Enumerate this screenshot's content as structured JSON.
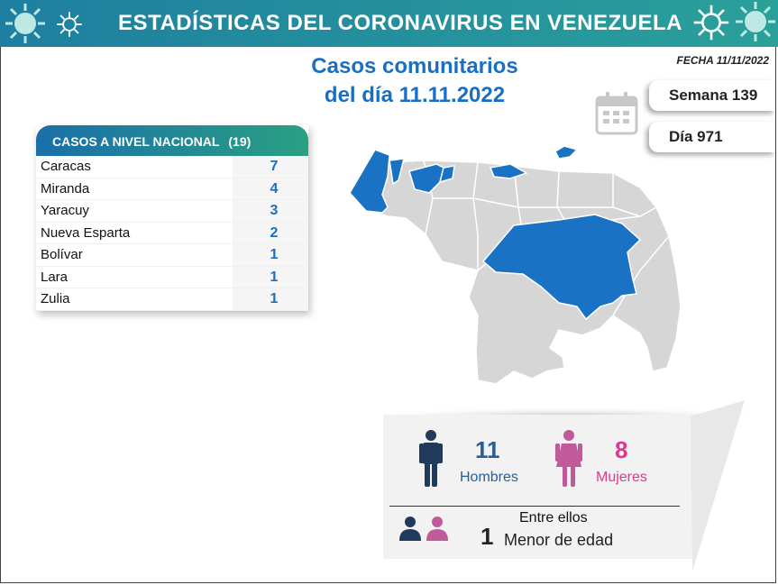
{
  "banner": {
    "title": "ESTADÍSTICAS DEL CORONAVIRUS EN VENEZUELA"
  },
  "headline": {
    "line1": "Casos comunitarios",
    "line2": "del día 11.11.2022"
  },
  "fecha": "FECHA 11/11/2022",
  "semana": "Semana 139",
  "dia": "Día 971",
  "national": {
    "title": "CASOS A NIVEL NACIONAL",
    "total": "(19)",
    "rows": [
      {
        "name": "Caracas",
        "value": "7"
      },
      {
        "name": "Miranda",
        "value": "4"
      },
      {
        "name": "Yaracuy",
        "value": "3"
      },
      {
        "name": "Nueva Esparta",
        "value": "2"
      },
      {
        "name": "Bolívar",
        "value": "1"
      },
      {
        "name": "Lara",
        "value": "1"
      },
      {
        "name": "Zulia",
        "value": "1"
      }
    ]
  },
  "gender": {
    "men_count": "11",
    "men_label": "Hombres",
    "women_count": "8",
    "women_label": "Mujeres",
    "among_label": "Entre ellos",
    "minor_count": "1",
    "minor_label": "Menor de edad"
  },
  "colors": {
    "accent_blue": "#1a6fc2",
    "highlight_map": "#1a72c4",
    "map_gray": "#d6d6d6",
    "men": "#1f3a5a",
    "women": "#c05a9a",
    "women_text": "#e0368e"
  },
  "icons": [
    "virus-icon",
    "calendar-icon",
    "man-icon",
    "woman-icon",
    "child-icon"
  ]
}
